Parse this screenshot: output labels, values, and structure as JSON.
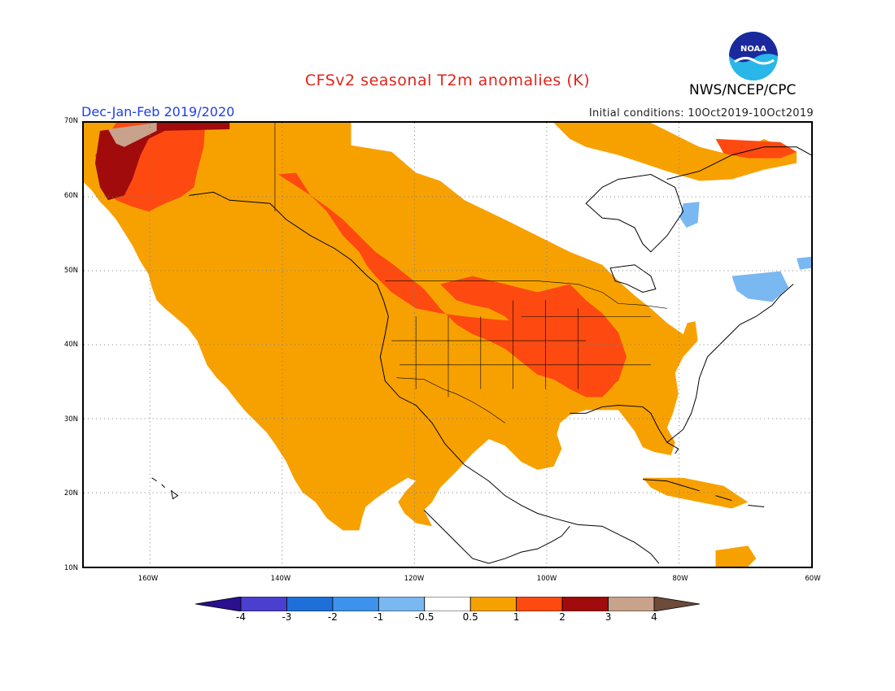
{
  "header": {
    "title": "CFSv2 seasonal T2m anomalies (K)",
    "season": "Dec-Jan-Feb 2019/2020",
    "initial_conditions": "Initial conditions: 10Oct2019-10Oct2019",
    "agency": "NWS/NCEP/CPC",
    "logo_text": "NOAA"
  },
  "map": {
    "lat_labels": [
      "70N",
      "60N",
      "50N",
      "40N",
      "30N",
      "20N",
      "10N"
    ],
    "lon_labels": [
      "160W",
      "140W",
      "120W",
      "100W",
      "80W",
      "60W"
    ],
    "lat_range": [
      10,
      70
    ],
    "lon_range": [
      -170,
      -60
    ],
    "gridlines": "dotted"
  },
  "legend": {
    "labels": [
      "-4",
      "-3",
      "-2",
      "-1",
      "-0.5",
      "0.5",
      "1",
      "2",
      "3",
      "4"
    ],
    "colors": [
      "#2a0f8f",
      "#4a3fcf",
      "#1f6fd9",
      "#3d93ec",
      "#7ab8f2",
      "#ffffff",
      "#f7a100",
      "#fe4a10",
      "#a10b0b",
      "#c9a28c",
      "#6e4a3a"
    ]
  }
}
